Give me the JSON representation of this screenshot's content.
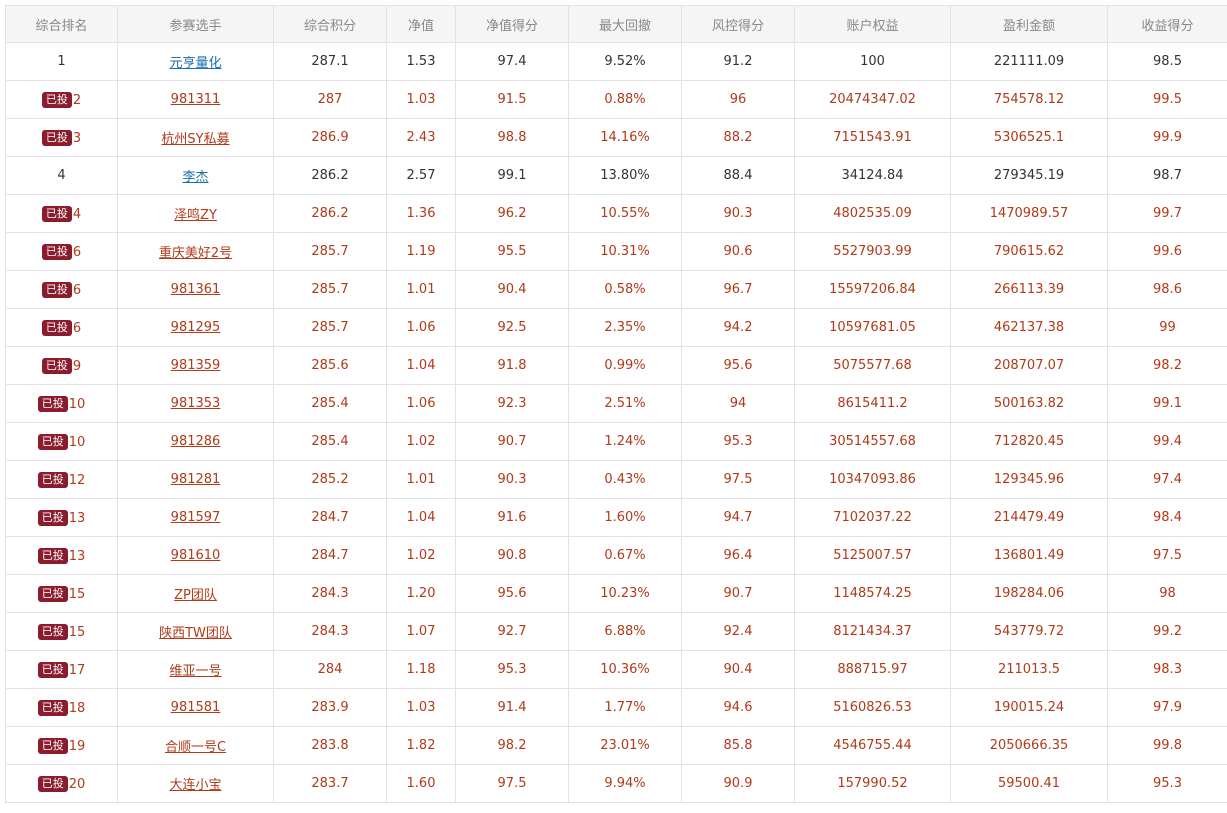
{
  "headers": [
    "综合排名",
    "参赛选手",
    "综合积分",
    "净值",
    "净值得分",
    "最大回撤",
    "风控得分",
    "账户权益",
    "盈利金额",
    "收益得分"
  ],
  "badge_label": "已投",
  "rows": [
    {
      "invested": false,
      "rank": "1",
      "name": "元亨量化",
      "score": "287.1",
      "nav": "1.53",
      "nav_score": "97.4",
      "drawdown": "9.52%",
      "risk_score": "91.2",
      "equity": "100",
      "profit": "221111.09",
      "return_score": "98.5"
    },
    {
      "invested": true,
      "rank": "2",
      "name": "981311",
      "score": "287",
      "nav": "1.03",
      "nav_score": "91.5",
      "drawdown": "0.88%",
      "risk_score": "96",
      "equity": "20474347.02",
      "profit": "754578.12",
      "return_score": "99.5"
    },
    {
      "invested": true,
      "rank": "3",
      "name": "杭州SY私募",
      "score": "286.9",
      "nav": "2.43",
      "nav_score": "98.8",
      "drawdown": "14.16%",
      "risk_score": "88.2",
      "equity": "7151543.91",
      "profit": "5306525.1",
      "return_score": "99.9"
    },
    {
      "invested": false,
      "rank": "4",
      "name": "李杰",
      "score": "286.2",
      "nav": "2.57",
      "nav_score": "99.1",
      "drawdown": "13.80%",
      "risk_score": "88.4",
      "equity": "34124.84",
      "profit": "279345.19",
      "return_score": "98.7"
    },
    {
      "invested": true,
      "rank": "4",
      "name": "泽鸣ZY",
      "score": "286.2",
      "nav": "1.36",
      "nav_score": "96.2",
      "drawdown": "10.55%",
      "risk_score": "90.3",
      "equity": "4802535.09",
      "profit": "1470989.57",
      "return_score": "99.7"
    },
    {
      "invested": true,
      "rank": "6",
      "name": "重庆美好2号",
      "score": "285.7",
      "nav": "1.19",
      "nav_score": "95.5",
      "drawdown": "10.31%",
      "risk_score": "90.6",
      "equity": "5527903.99",
      "profit": "790615.62",
      "return_score": "99.6"
    },
    {
      "invested": true,
      "rank": "6",
      "name": "981361",
      "score": "285.7",
      "nav": "1.01",
      "nav_score": "90.4",
      "drawdown": "0.58%",
      "risk_score": "96.7",
      "equity": "15597206.84",
      "profit": "266113.39",
      "return_score": "98.6"
    },
    {
      "invested": true,
      "rank": "6",
      "name": "981295",
      "score": "285.7",
      "nav": "1.06",
      "nav_score": "92.5",
      "drawdown": "2.35%",
      "risk_score": "94.2",
      "equity": "10597681.05",
      "profit": "462137.38",
      "return_score": "99"
    },
    {
      "invested": true,
      "rank": "9",
      "name": "981359",
      "score": "285.6",
      "nav": "1.04",
      "nav_score": "91.8",
      "drawdown": "0.99%",
      "risk_score": "95.6",
      "equity": "5075577.68",
      "profit": "208707.07",
      "return_score": "98.2"
    },
    {
      "invested": true,
      "rank": "10",
      "name": "981353",
      "score": "285.4",
      "nav": "1.06",
      "nav_score": "92.3",
      "drawdown": "2.51%",
      "risk_score": "94",
      "equity": "8615411.2",
      "profit": "500163.82",
      "return_score": "99.1"
    },
    {
      "invested": true,
      "rank": "10",
      "name": "981286",
      "score": "285.4",
      "nav": "1.02",
      "nav_score": "90.7",
      "drawdown": "1.24%",
      "risk_score": "95.3",
      "equity": "30514557.68",
      "profit": "712820.45",
      "return_score": "99.4"
    },
    {
      "invested": true,
      "rank": "12",
      "name": "981281",
      "score": "285.2",
      "nav": "1.01",
      "nav_score": "90.3",
      "drawdown": "0.43%",
      "risk_score": "97.5",
      "equity": "10347093.86",
      "profit": "129345.96",
      "return_score": "97.4"
    },
    {
      "invested": true,
      "rank": "13",
      "name": "981597",
      "score": "284.7",
      "nav": "1.04",
      "nav_score": "91.6",
      "drawdown": "1.60%",
      "risk_score": "94.7",
      "equity": "7102037.22",
      "profit": "214479.49",
      "return_score": "98.4"
    },
    {
      "invested": true,
      "rank": "13",
      "name": "981610",
      "score": "284.7",
      "nav": "1.02",
      "nav_score": "90.8",
      "drawdown": "0.67%",
      "risk_score": "96.4",
      "equity": "5125007.57",
      "profit": "136801.49",
      "return_score": "97.5"
    },
    {
      "invested": true,
      "rank": "15",
      "name": "ZP团队",
      "score": "284.3",
      "nav": "1.20",
      "nav_score": "95.6",
      "drawdown": "10.23%",
      "risk_score": "90.7",
      "equity": "1148574.25",
      "profit": "198284.06",
      "return_score": "98"
    },
    {
      "invested": true,
      "rank": "15",
      "name": "陕西TW团队",
      "score": "284.3",
      "nav": "1.07",
      "nav_score": "92.7",
      "drawdown": "6.88%",
      "risk_score": "92.4",
      "equity": "8121434.37",
      "profit": "543779.72",
      "return_score": "99.2"
    },
    {
      "invested": true,
      "rank": "17",
      "name": "维亚一号",
      "score": "284",
      "nav": "1.18",
      "nav_score": "95.3",
      "drawdown": "10.36%",
      "risk_score": "90.4",
      "equity": "888715.97",
      "profit": "211013.5",
      "return_score": "98.3"
    },
    {
      "invested": true,
      "rank": "18",
      "name": "981581",
      "score": "283.9",
      "nav": "1.03",
      "nav_score": "91.4",
      "drawdown": "1.77%",
      "risk_score": "94.6",
      "equity": "5160826.53",
      "profit": "190015.24",
      "return_score": "97.9"
    },
    {
      "invested": true,
      "rank": "19",
      "name": "合顺一号C",
      "score": "283.8",
      "nav": "1.82",
      "nav_score": "98.2",
      "drawdown": "23.01%",
      "risk_score": "85.8",
      "equity": "4546755.44",
      "profit": "2050666.35",
      "return_score": "99.8"
    },
    {
      "invested": true,
      "rank": "20",
      "name": "大连小宝",
      "score": "283.7",
      "nav": "1.60",
      "nav_score": "97.5",
      "drawdown": "9.94%",
      "risk_score": "90.9",
      "equity": "157990.52",
      "profit": "59500.41",
      "return_score": "95.3"
    }
  ]
}
